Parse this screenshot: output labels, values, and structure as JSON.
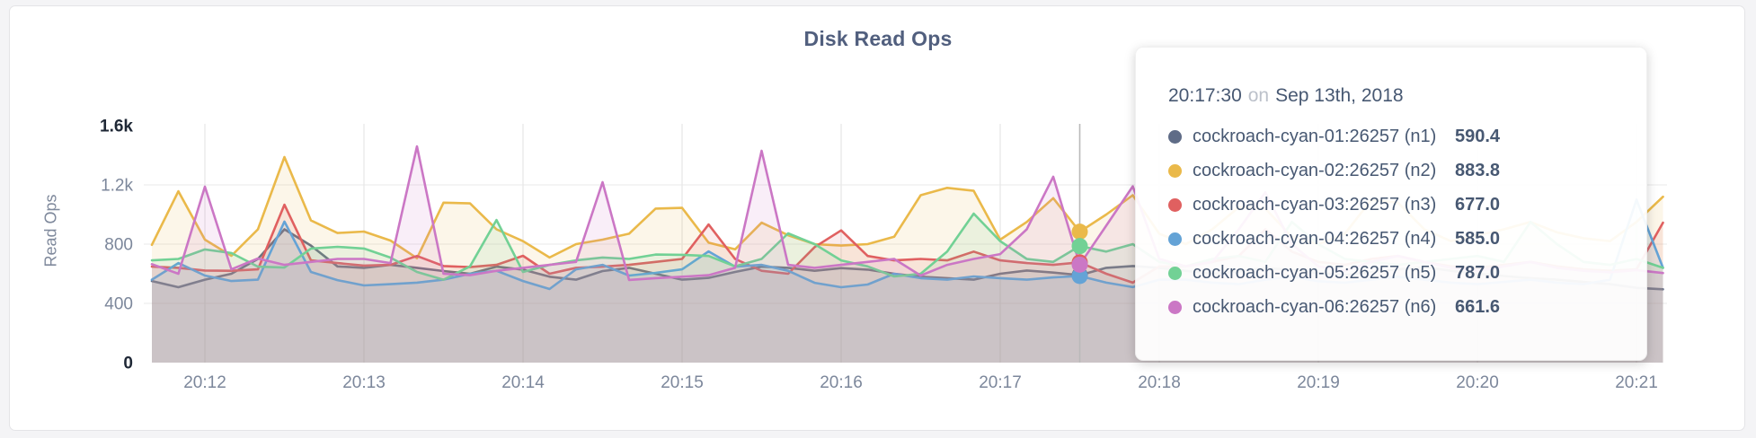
{
  "chart_data": {
    "type": "line",
    "title": "Disk Read Ops",
    "ylabel": "Read Ops",
    "xlabel": "",
    "grid": true,
    "legend_position": "tooltip-only",
    "start_time": "20:11:40",
    "step_seconds": 10,
    "ylim": [
      0,
      1600
    ],
    "y_ticks": [
      {
        "label": "0",
        "value": 0,
        "emphasis": true
      },
      {
        "label": "400",
        "value": 400,
        "emphasis": false
      },
      {
        "label": "800",
        "value": 800,
        "emphasis": false
      },
      {
        "label": "1.2k",
        "value": 1200,
        "emphasis": false
      },
      {
        "label": "1.6k",
        "value": 1600,
        "emphasis": true
      }
    ],
    "x_ticks": [
      {
        "label": "20:12",
        "index": 2
      },
      {
        "label": "20:13",
        "index": 8
      },
      {
        "label": "20:14",
        "index": 14
      },
      {
        "label": "20:15",
        "index": 20
      },
      {
        "label": "20:16",
        "index": 26
      },
      {
        "label": "20:17",
        "index": 32
      },
      {
        "label": "20:18",
        "index": 38
      },
      {
        "label": "20:19",
        "index": 44
      },
      {
        "label": "20:20",
        "index": 50
      },
      {
        "label": "20:21",
        "index": 56
      }
    ],
    "series": [
      {
        "name": "cockroach-cyan-01:26257 (n1)",
        "color": "#5f6c87",
        "values": [
          551,
          509,
          560,
          600,
          700,
          900,
          790,
          650,
          640,
          660,
          640,
          618,
          600,
          648,
          628,
          580,
          560,
          618,
          640,
          600,
          560,
          572,
          612,
          648,
          640,
          620,
          638,
          628,
          600,
          580,
          570,
          560,
          600,
          622,
          608,
          590.4,
          640,
          652,
          640,
          620,
          600,
          615,
          640,
          625,
          605,
          590,
          612,
          630,
          645,
          620,
          600,
          585,
          570,
          560,
          545,
          530,
          505,
          495
        ]
      },
      {
        "name": "cockroach-cyan-02:26257 (n2)",
        "color": "#eab94a",
        "values": [
          795,
          1157,
          830,
          721,
          900,
          1388,
          960,
          875,
          885,
          824,
          705,
          1080,
          1075,
          900,
          820,
          710,
          800,
          830,
          870,
          1040,
          1045,
          810,
          765,
          945,
          860,
          800,
          790,
          800,
          850,
          1130,
          1180,
          1160,
          830,
          950,
          1110,
          883.8,
          1000,
          1130,
          870,
          800,
          900,
          1050,
          1040,
          850,
          800,
          870,
          1100,
          1080,
          900,
          820,
          860,
          900,
          950,
          880,
          840,
          820,
          950,
          1120
        ]
      },
      {
        "name": "cockroach-cyan-03:26257 (n3)",
        "color": "#e06060",
        "values": [
          648,
          640,
          622,
          620,
          630,
          1066,
          690,
          672,
          655,
          660,
          720,
          652,
          645,
          660,
          721,
          600,
          640,
          648,
          660,
          680,
          700,
          933,
          700,
          620,
          600,
          780,
          893,
          720,
          690,
          700,
          690,
          750,
          690,
          672,
          660,
          677,
          600,
          540,
          650,
          650,
          680,
          720,
          900,
          750,
          680,
          660,
          700,
          720,
          680,
          650,
          640,
          660,
          680,
          650,
          630,
          620,
          630,
          945
        ]
      },
      {
        "name": "cockroach-cyan-04:26257 (n4)",
        "color": "#64a3d6",
        "values": [
          560,
          672,
          588,
          551,
          560,
          952,
          612,
          557,
          521,
          530,
          540,
          560,
          600,
          620,
          551,
          497,
          630,
          660,
          588,
          606,
          630,
          751,
          648,
          660,
          620,
          539,
          509,
          527,
          600,
          570,
          560,
          582,
          570,
          560,
          575,
          585,
          540,
          510,
          560,
          560,
          540,
          530,
          560,
          580,
          550,
          540,
          560,
          580,
          560,
          540,
          530,
          545,
          560,
          540,
          530,
          560,
          1100,
          640
        ]
      },
      {
        "name": "cockroach-cyan-05:26257 (n5)",
        "color": "#72d195",
        "values": [
          690,
          700,
          764,
          740,
          648,
          642,
          770,
          782,
          770,
          709,
          612,
          560,
          650,
          963,
          612,
          660,
          690,
          710,
          700,
          730,
          728,
          720,
          650,
          700,
          873,
          800,
          690,
          650,
          582,
          600,
          750,
          1006,
          820,
          700,
          680,
          787,
          750,
          800,
          680,
          650,
          700,
          720,
          680,
          950,
          800,
          700,
          680,
          660,
          680,
          700,
          720,
          680,
          950,
          800,
          680,
          660,
          700,
          640
        ]
      },
      {
        "name": "cockroach-cyan-06:26257 (n6)",
        "color": "#cb77c5",
        "values": [
          665,
          600,
          1188,
          630,
          703,
          660,
          680,
          700,
          700,
          672,
          1460,
          600,
          590,
          620,
          640,
          660,
          680,
          1218,
          558,
          570,
          580,
          590,
          640,
          1430,
          660,
          640,
          660,
          680,
          700,
          588,
          660,
          700,
          733,
          900,
          1255,
          661.6,
          925,
          1190,
          700,
          650,
          680,
          900,
          1150,
          800,
          650,
          620,
          680,
          720,
          680,
          640,
          620,
          650,
          680,
          640,
          620,
          610,
          625,
          605
        ]
      }
    ]
  },
  "tooltip": {
    "time": "20:17:30",
    "conjunction": "on",
    "date": "Sep 13th, 2018",
    "hover_index": 35,
    "rows": [
      {
        "name": "cockroach-cyan-01:26257 (n1)",
        "value": "590.4",
        "color": "#5f6c87"
      },
      {
        "name": "cockroach-cyan-02:26257 (n2)",
        "value": "883.8",
        "color": "#eab94a"
      },
      {
        "name": "cockroach-cyan-03:26257 (n3)",
        "value": "677.0",
        "color": "#e06060"
      },
      {
        "name": "cockroach-cyan-04:26257 (n4)",
        "value": "585.0",
        "color": "#64a3d6"
      },
      {
        "name": "cockroach-cyan-05:26257 (n5)",
        "value": "787.0",
        "color": "#72d195"
      },
      {
        "name": "cockroach-cyan-06:26257 (n6)",
        "value": "661.6",
        "color": "#cb77c5"
      }
    ]
  },
  "colors": {
    "page_bg": "#f4f4f6",
    "card_bg": "#ffffff",
    "card_border": "#e4e4e7",
    "grid_h": "#ededed",
    "grid_v": "#e7e7e7",
    "hover_line": "#b9b9b9",
    "title": "#515f7e",
    "tick": "#7c879b",
    "tick_emphasis": "#1e2735"
  }
}
